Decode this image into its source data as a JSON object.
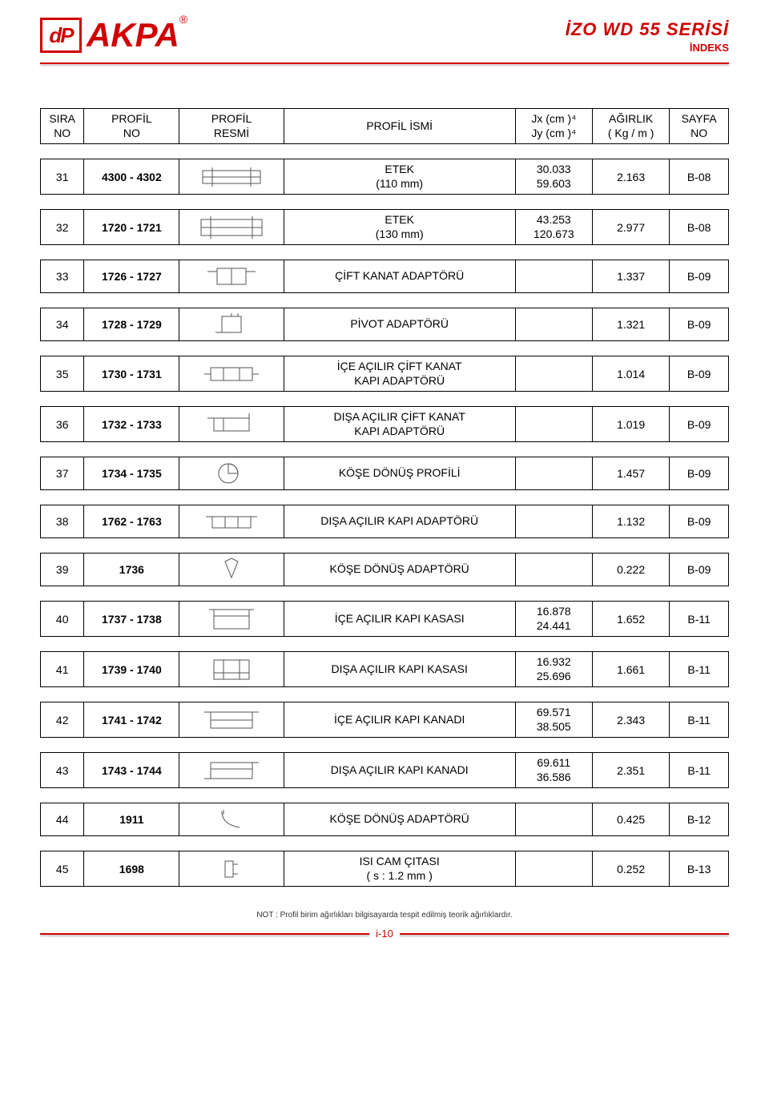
{
  "header": {
    "logo_text": "dP",
    "brand": "AKPA",
    "reg": "®",
    "series": "İZO WD 55 SERİSİ",
    "indeks": "İNDEKS"
  },
  "columns": {
    "sira": "SIRA\nNO",
    "profil": "PROFİL\nNO",
    "resmi": "PROFİL\nRESMİ",
    "ismi": "PROFİL İSMİ",
    "jx": "Jx (cm )⁴\nJy (cm )⁴",
    "agirlik": "AĞIRLIK\n( Kg / m )",
    "sayfa": "SAYFA\nNO"
  },
  "rows": [
    {
      "sira": "31",
      "profil": "4300 - 4302",
      "ismi": "ETEK\n(110 mm)",
      "jx": "30.033\n59.603",
      "agir": "2.163",
      "sayfa": "B-08"
    },
    {
      "sira": "32",
      "profil": "1720 - 1721",
      "ismi": "ETEK\n(130 mm)",
      "jx": "43.253\n120.673",
      "agir": "2.977",
      "sayfa": "B-08"
    },
    {
      "sira": "33",
      "profil": "1726 - 1727",
      "ismi": "ÇİFT KANAT ADAPTÖRÜ",
      "jx": "",
      "agir": "1.337",
      "sayfa": "B-09"
    },
    {
      "sira": "34",
      "profil": "1728 - 1729",
      "ismi": "PİVOT ADAPTÖRÜ",
      "jx": "",
      "agir": "1.321",
      "sayfa": "B-09"
    },
    {
      "sira": "35",
      "profil": "1730 - 1731",
      "ismi": "İÇE AÇILIR ÇİFT KANAT\nKAPI ADAPTÖRÜ",
      "jx": "",
      "agir": "1.014",
      "sayfa": "B-09"
    },
    {
      "sira": "36",
      "profil": "1732 - 1733",
      "ismi": "DIŞA AÇILIR ÇİFT KANAT\nKAPI ADAPTÖRÜ",
      "jx": "",
      "agir": "1.019",
      "sayfa": "B-09"
    },
    {
      "sira": "37",
      "profil": "1734 - 1735",
      "ismi": "KÖŞE DÖNÜŞ PROFİLİ",
      "jx": "",
      "agir": "1.457",
      "sayfa": "B-09"
    },
    {
      "sira": "38",
      "profil": "1762 - 1763",
      "ismi": "DIŞA AÇILIR KAPI ADAPTÖRÜ",
      "jx": "",
      "agir": "1.132",
      "sayfa": "B-09"
    },
    {
      "sira": "39",
      "profil": "1736",
      "ismi": "KÖŞE DÖNÜŞ ADAPTÖRÜ",
      "jx": "",
      "agir": "0.222",
      "sayfa": "B-09"
    },
    {
      "sira": "40",
      "profil": "1737 - 1738",
      "ismi": "İÇE AÇILIR KAPI KASASI",
      "jx": "16.878\n24.441",
      "agir": "1.652",
      "sayfa": "B-11"
    },
    {
      "sira": "41",
      "profil": "1739 - 1740",
      "ismi": "DIŞA AÇILIR KAPI KASASI",
      "jx": "16.932\n25.696",
      "agir": "1.661",
      "sayfa": "B-11"
    },
    {
      "sira": "42",
      "profil": "1741 - 1742",
      "ismi": "İÇE AÇILIR KAPI KANADI",
      "jx": "69.571\n38.505",
      "agir": "2.343",
      "sayfa": "B-11"
    },
    {
      "sira": "43",
      "profil": "1743 - 1744",
      "ismi": "DIŞA AÇILIR KAPI KANADI",
      "jx": "69.611\n36.586",
      "agir": "2.351",
      "sayfa": "B-11"
    },
    {
      "sira": "44",
      "profil": "1911",
      "ismi": "KÖŞE DÖNÜŞ ADAPTÖRÜ",
      "jx": "",
      "agir": "0.425",
      "sayfa": "B-12"
    },
    {
      "sira": "45",
      "profil": "1698",
      "ismi": "ISI CAM ÇITASI\n( s : 1.2 mm )",
      "jx": "",
      "agir": "0.252",
      "sayfa": "B-13"
    }
  ],
  "footnote": "NOT : Profil birim ağırlıkları bilgisayarda tespit edilmiş teorik ağırlıklardır.",
  "footer_page": "i-10",
  "style": {
    "brand_color": "#d00000",
    "thumb_stroke": "#444444"
  }
}
